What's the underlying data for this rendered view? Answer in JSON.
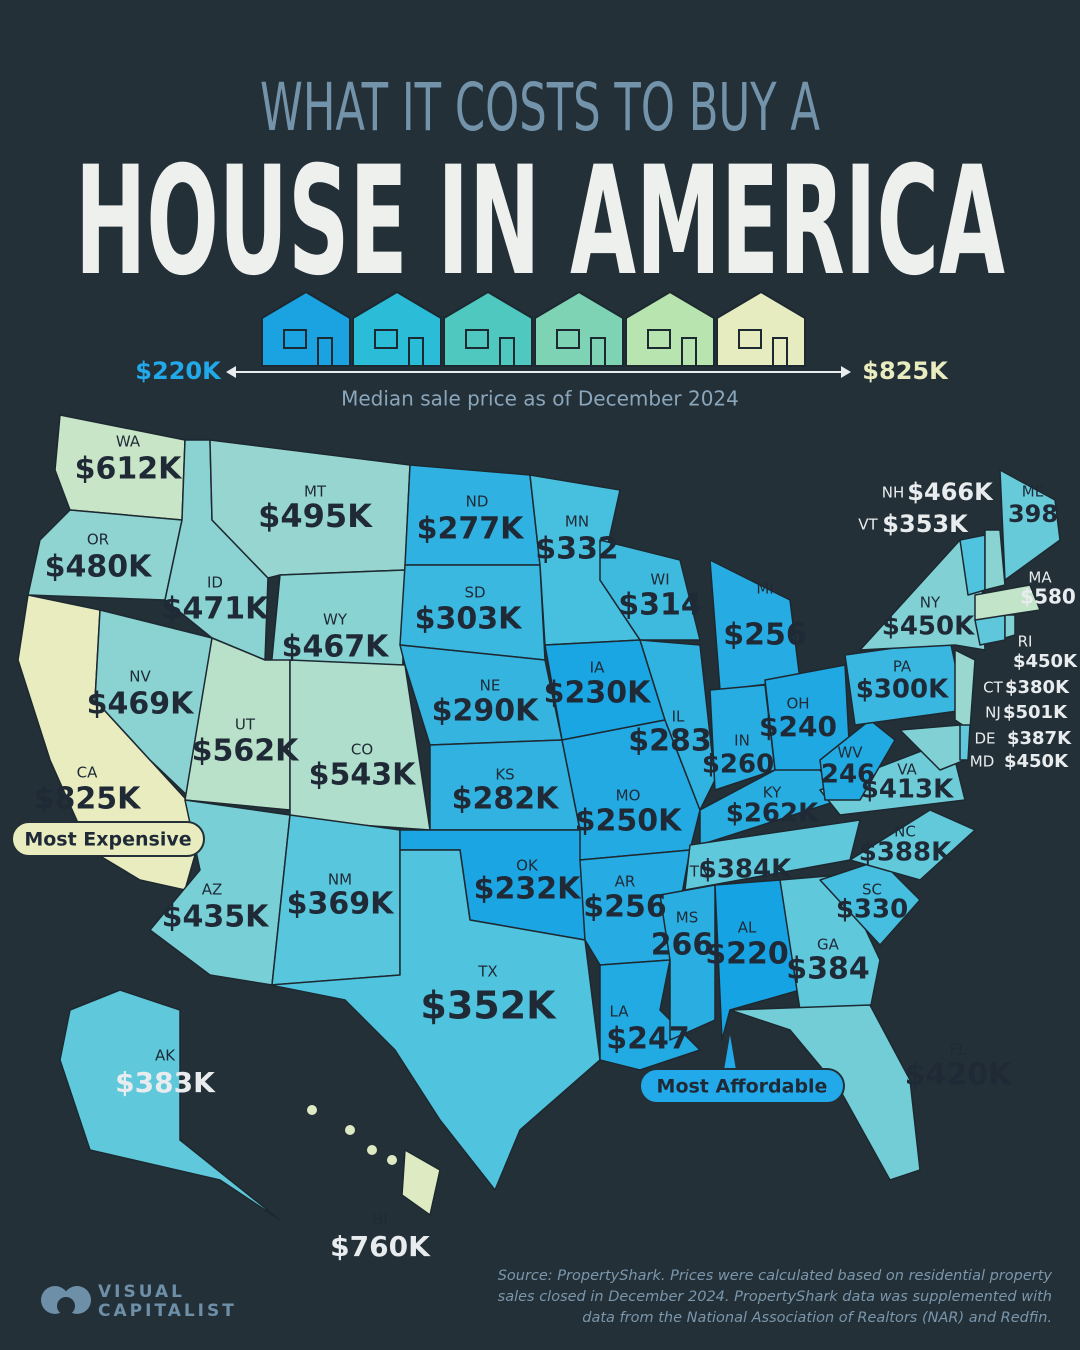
{
  "header": {
    "kicker": "WHAT IT COSTS TO BUY A",
    "title": "HOUSE IN AMERICA"
  },
  "legend": {
    "min_label": "$220K",
    "min": 220000,
    "max_label": "$825K",
    "max": 825000,
    "caption": "Median sale price as of December 2024"
  },
  "states": [
    {
      "code": "WA",
      "price": "$612K",
      "value": 612000
    },
    {
      "code": "OR",
      "price": "$480K",
      "value": 480000
    },
    {
      "code": "CA",
      "price": "$825K",
      "value": 825000
    },
    {
      "code": "NV",
      "price": "$469K",
      "value": 469000
    },
    {
      "code": "ID",
      "price": "$471K",
      "value": 471000
    },
    {
      "code": "MT",
      "price": "$495K",
      "value": 495000
    },
    {
      "code": "WY",
      "price": "$467K",
      "value": 467000
    },
    {
      "code": "UT",
      "price": "$562K",
      "value": 562000
    },
    {
      "code": "CO",
      "price": "$543K",
      "value": 543000
    },
    {
      "code": "AZ",
      "price": "$435K",
      "value": 435000
    },
    {
      "code": "NM",
      "price": "$369K",
      "value": 369000
    },
    {
      "code": "ND",
      "price": "$277K",
      "value": 277000
    },
    {
      "code": "SD",
      "price": "$303K",
      "value": 303000
    },
    {
      "code": "NE",
      "price": "$290K",
      "value": 290000
    },
    {
      "code": "KS",
      "price": "$282K",
      "value": 282000
    },
    {
      "code": "OK",
      "price": "$232K",
      "value": 232000
    },
    {
      "code": "TX",
      "price": "$352K",
      "value": 352000
    },
    {
      "code": "MN",
      "price": "$332",
      "value": 332000
    },
    {
      "code": "IA",
      "price": "$230K",
      "value": 230000
    },
    {
      "code": "MO",
      "price": "$250K",
      "value": 250000
    },
    {
      "code": "AR",
      "price": "$256",
      "value": 256000
    },
    {
      "code": "LA",
      "price": "$247",
      "value": 247000
    },
    {
      "code": "WI",
      "price": "$314",
      "value": 314000
    },
    {
      "code": "IL",
      "price": "$283",
      "value": 283000
    },
    {
      "code": "MI",
      "price": "$256",
      "value": 256000
    },
    {
      "code": "IN",
      "price": "$260",
      "value": 260000
    },
    {
      "code": "OH",
      "price": "$240",
      "value": 240000
    },
    {
      "code": "KY",
      "price": "$262K",
      "value": 262000
    },
    {
      "code": "TN",
      "price": "$384K",
      "value": 384000
    },
    {
      "code": "MS",
      "price": "266",
      "value": 266000
    },
    {
      "code": "AL",
      "price": "$220",
      "value": 220000
    },
    {
      "code": "GA",
      "price": "$384",
      "value": 384000
    },
    {
      "code": "FL",
      "price": "$420K",
      "value": 420000
    },
    {
      "code": "SC",
      "price": "$330",
      "value": 330000
    },
    {
      "code": "NC",
      "price": "$388K",
      "value": 388000
    },
    {
      "code": "VA",
      "price": "$413K",
      "value": 413000
    },
    {
      "code": "WV",
      "price": "246",
      "value": 246000
    },
    {
      "code": "PA",
      "price": "$300K",
      "value": 300000
    },
    {
      "code": "NY",
      "price": "$450K",
      "value": 450000
    },
    {
      "code": "NJ",
      "price": "$501K",
      "value": 501000
    },
    {
      "code": "MD",
      "price": "$450K",
      "value": 450000
    },
    {
      "code": "DE",
      "price": "$387K",
      "value": 387000
    },
    {
      "code": "CT",
      "price": "$380K",
      "value": 380000
    },
    {
      "code": "RI",
      "price": "$450K",
      "value": 450000
    },
    {
      "code": "MA",
      "price": "$580",
      "value": 580000
    },
    {
      "code": "VT",
      "price": "$353K",
      "value": 353000
    },
    {
      "code": "NH",
      "price": "$466K",
      "value": 466000
    },
    {
      "code": "ME",
      "price": "398",
      "value": 398000
    },
    {
      "code": "AK",
      "price": "$383K",
      "value": 383000
    },
    {
      "code": "HI",
      "price": "$760K",
      "value": 760000
    }
  ],
  "callouts": {
    "most_expensive": "Most Expensive",
    "most_affordable": "Most Affordable"
  },
  "footer": {
    "brand_top": "VISUAL",
    "brand_bottom": "CAPITALIST",
    "source": [
      "Source: PropertyShark. Prices were calculated based on residential property",
      "sales closed in December 2024. PropertyShark data was supplemented with",
      "data from the National Association of Realtors (NAR) and Redfin."
    ]
  }
}
